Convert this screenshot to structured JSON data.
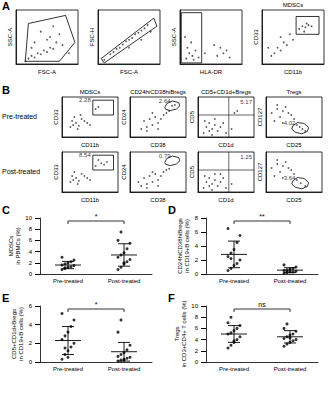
{
  "chart_data": [
    {
      "type": "scatter",
      "panel": "A",
      "xlabel": "FSC-A",
      "ylabel": "SSC-A",
      "xlim": [
        0,
        100
      ],
      "ylim": [
        0,
        100
      ],
      "tick_labels": false,
      "color": "#333333",
      "points": [
        [
          20,
          10
        ],
        [
          25,
          15
        ],
        [
          30,
          12
        ],
        [
          35,
          20
        ],
        [
          40,
          18
        ],
        [
          45,
          25
        ],
        [
          50,
          22
        ],
        [
          55,
          30
        ],
        [
          60,
          28
        ],
        [
          30,
          40
        ],
        [
          50,
          45
        ],
        [
          65,
          40
        ],
        [
          70,
          55
        ],
        [
          40,
          60
        ],
        [
          75,
          35
        ],
        [
          15,
          5
        ],
        [
          85,
          20
        ],
        [
          60,
          70
        ],
        [
          25,
          30
        ],
        [
          55,
          50
        ]
      ],
      "gate": [
        [
          15,
          5
        ],
        [
          20,
          75
        ],
        [
          80,
          90
        ],
        [
          95,
          40
        ],
        [
          70,
          5
        ]
      ]
    },
    {
      "type": "scatter",
      "xlabel": "FSC-A",
      "ylabel": "FSC-H",
      "xlim": [
        0,
        100
      ],
      "ylim": [
        0,
        100
      ],
      "tick_labels": false,
      "color": "#333333",
      "points": [
        [
          10,
          8
        ],
        [
          20,
          18
        ],
        [
          30,
          28
        ],
        [
          40,
          36
        ],
        [
          50,
          45
        ],
        [
          60,
          55
        ],
        [
          70,
          62
        ],
        [
          80,
          72
        ],
        [
          35,
          30
        ],
        [
          45,
          42
        ],
        [
          55,
          48
        ],
        [
          65,
          58
        ],
        [
          25,
          22
        ],
        [
          75,
          66
        ],
        [
          50,
          30
        ],
        [
          70,
          45
        ],
        [
          85,
          60
        ]
      ],
      "gate": [
        [
          5,
          10
        ],
        [
          10,
          2
        ],
        [
          95,
          70
        ],
        [
          90,
          85
        ]
      ]
    },
    {
      "type": "scatter",
      "xlabel": "HLA-DR",
      "ylabel": "SSC-A",
      "xlim": [
        0,
        100
      ],
      "ylim": [
        0,
        100
      ],
      "tick_labels": false,
      "color": "#333333",
      "points": [
        [
          10,
          10
        ],
        [
          15,
          20
        ],
        [
          20,
          15
        ],
        [
          12,
          30
        ],
        [
          25,
          25
        ],
        [
          18,
          40
        ],
        [
          30,
          12
        ],
        [
          60,
          15
        ],
        [
          70,
          20
        ],
        [
          65,
          30
        ],
        [
          75,
          25
        ],
        [
          8,
          50
        ],
        [
          22,
          8
        ],
        [
          55,
          35
        ],
        [
          80,
          12
        ],
        [
          40,
          20
        ]
      ],
      "gate": [
        [
          2,
          2
        ],
        [
          2,
          95
        ],
        [
          35,
          95
        ],
        [
          35,
          2
        ]
      ]
    },
    {
      "type": "scatter",
      "title": "MDSCs",
      "xlabel": "CD11b",
      "ylabel": "CD33",
      "xlim": [
        0,
        100
      ],
      "ylim": [
        0,
        100
      ],
      "tick_labels": false,
      "color": "#333333",
      "points": [
        [
          20,
          20
        ],
        [
          25,
          30
        ],
        [
          30,
          25
        ],
        [
          35,
          40
        ],
        [
          40,
          35
        ],
        [
          15,
          15
        ],
        [
          60,
          65
        ],
        [
          65,
          70
        ],
        [
          70,
          68
        ],
        [
          75,
          72
        ],
        [
          68,
          60
        ],
        [
          72,
          75
        ],
        [
          50,
          45
        ],
        [
          45,
          55
        ],
        [
          80,
          70
        ],
        [
          10,
          30
        ],
        [
          30,
          50
        ]
      ],
      "gate": [
        [
          55,
          55
        ],
        [
          55,
          88
        ],
        [
          92,
          88
        ],
        [
          92,
          55
        ]
      ]
    },
    {
      "type": "scatter",
      "panel": "B",
      "row_label": "Pre-treated",
      "title": "MDSCs",
      "xlabel": "CD11b",
      "ylabel": "CD33",
      "xlim": [
        0,
        100
      ],
      "ylim": [
        0,
        100
      ],
      "tick_labels": false,
      "color": "#333333",
      "points": [
        [
          20,
          30
        ],
        [
          25,
          35
        ],
        [
          30,
          28
        ],
        [
          35,
          45
        ],
        [
          15,
          25
        ],
        [
          40,
          40
        ],
        [
          22,
          50
        ],
        [
          28,
          20
        ],
        [
          60,
          70
        ],
        [
          65,
          75
        ],
        [
          45,
          35
        ],
        [
          18,
          40
        ],
        [
          33,
          55
        ],
        [
          50,
          30
        ]
      ],
      "gate": [
        [
          55,
          55
        ],
        [
          55,
          92
        ],
        [
          92,
          92
        ],
        [
          92,
          55
        ]
      ],
      "gate_label": 2.28
    },
    {
      "type": "scatter",
      "title": "CD24hiCD38hiBregs",
      "xlabel": "CD38",
      "ylabel": "CD24",
      "xlim": [
        0,
        100
      ],
      "ylim": [
        0,
        100
      ],
      "tick_labels": false,
      "color": "#333333",
      "points": [
        [
          20,
          20
        ],
        [
          30,
          25
        ],
        [
          40,
          30
        ],
        [
          50,
          35
        ],
        [
          25,
          40
        ],
        [
          35,
          45
        ],
        [
          45,
          50
        ],
        [
          55,
          45
        ],
        [
          60,
          55
        ],
        [
          65,
          60
        ],
        [
          70,
          65
        ],
        [
          75,
          78
        ],
        [
          30,
          15
        ],
        [
          50,
          20
        ],
        [
          40,
          60
        ],
        [
          80,
          80
        ]
      ],
      "gate": [
        [
          62,
          74
        ],
        [
          66,
          84
        ],
        [
          76,
          90
        ],
        [
          87,
          86
        ],
        [
          89,
          78
        ],
        [
          83,
          70
        ],
        [
          72,
          66
        ],
        [
          64,
          69
        ]
      ],
      "gate_label": 2.64
    },
    {
      "type": "scatter",
      "title": "CD5+CD1d+Bregs",
      "xlabel": "CD1d",
      "ylabel": "CD5",
      "xlim": [
        0,
        100
      ],
      "ylim": [
        0,
        100
      ],
      "tick_labels": false,
      "color": "#333333",
      "points": [
        [
          10,
          10
        ],
        [
          20,
          15
        ],
        [
          15,
          25
        ],
        [
          25,
          20
        ],
        [
          30,
          30
        ],
        [
          35,
          15
        ],
        [
          20,
          35
        ],
        [
          40,
          25
        ],
        [
          12,
          40
        ],
        [
          30,
          45
        ],
        [
          45,
          35
        ],
        [
          60,
          20
        ],
        [
          65,
          60
        ],
        [
          70,
          65
        ],
        [
          50,
          10
        ],
        [
          25,
          5
        ]
      ],
      "quadrant": [
        55,
        55
      ],
      "gate_label": 5.17
    },
    {
      "type": "scatter",
      "title": "Tregs",
      "xlabel": "CD25",
      "ylabel": "CD127",
      "xlim": [
        0,
        100
      ],
      "ylim": [
        0,
        100
      ],
      "tick_labels": false,
      "color": "#333333",
      "points": [
        [
          10,
          60
        ],
        [
          20,
          70
        ],
        [
          30,
          65
        ],
        [
          40,
          60
        ],
        [
          25,
          50
        ],
        [
          35,
          75
        ],
        [
          15,
          40
        ],
        [
          45,
          55
        ],
        [
          50,
          45
        ],
        [
          55,
          30
        ],
        [
          60,
          25
        ],
        [
          30,
          35
        ],
        [
          20,
          80
        ],
        [
          65,
          20
        ],
        [
          70,
          15
        ]
      ],
      "gate": [
        [
          48,
          28
        ],
        [
          56,
          36
        ],
        [
          68,
          34
        ],
        [
          76,
          24
        ],
        [
          74,
          14
        ],
        [
          64,
          8
        ],
        [
          52,
          12
        ],
        [
          46,
          20
        ]
      ],
      "gate_label": 4.02
    },
    {
      "type": "scatter",
      "row_label": "Post-treated",
      "xlabel": "CD11b",
      "ylabel": "CD33",
      "xlim": [
        0,
        100
      ],
      "ylim": [
        0,
        100
      ],
      "tick_labels": false,
      "color": "#333333",
      "points": [
        [
          20,
          30
        ],
        [
          25,
          35
        ],
        [
          30,
          28
        ],
        [
          35,
          45
        ],
        [
          15,
          25
        ],
        [
          40,
          40
        ],
        [
          22,
          50
        ],
        [
          28,
          20
        ],
        [
          60,
          65
        ],
        [
          70,
          72
        ],
        [
          75,
          68
        ],
        [
          65,
          80
        ],
        [
          80,
          75
        ],
        [
          45,
          35
        ],
        [
          18,
          40
        ],
        [
          50,
          30
        ]
      ],
      "gate": [
        [
          55,
          55
        ],
        [
          55,
          92
        ],
        [
          92,
          92
        ],
        [
          92,
          55
        ]
      ],
      "gate_label": 8.54
    },
    {
      "type": "scatter",
      "xlabel": "CD38",
      "ylabel": "CD24",
      "xlim": [
        0,
        100
      ],
      "ylim": [
        0,
        100
      ],
      "tick_labels": false,
      "color": "#333333",
      "points": [
        [
          20,
          15
        ],
        [
          30,
          20
        ],
        [
          40,
          25
        ],
        [
          50,
          30
        ],
        [
          25,
          35
        ],
        [
          35,
          40
        ],
        [
          45,
          45
        ],
        [
          55,
          40
        ],
        [
          60,
          50
        ],
        [
          65,
          55
        ],
        [
          70,
          58
        ],
        [
          30,
          10
        ],
        [
          50,
          15
        ],
        [
          40,
          50
        ],
        [
          15,
          25
        ]
      ],
      "gate": [
        [
          62,
          74
        ],
        [
          66,
          84
        ],
        [
          76,
          90
        ],
        [
          87,
          86
        ],
        [
          89,
          78
        ],
        [
          83,
          70
        ],
        [
          72,
          66
        ],
        [
          64,
          69
        ]
      ],
      "gate_label": 0.79
    },
    {
      "type": "scatter",
      "xlabel": "CD1d",
      "ylabel": "CD5",
      "xlim": [
        0,
        100
      ],
      "ylim": [
        0,
        100
      ],
      "tick_labels": false,
      "color": "#333333",
      "points": [
        [
          10,
          10
        ],
        [
          20,
          15
        ],
        [
          15,
          25
        ],
        [
          25,
          20
        ],
        [
          30,
          30
        ],
        [
          35,
          15
        ],
        [
          20,
          35
        ],
        [
          40,
          25
        ],
        [
          12,
          40
        ],
        [
          30,
          45
        ],
        [
          45,
          35
        ],
        [
          60,
          20
        ],
        [
          50,
          10
        ],
        [
          25,
          5
        ],
        [
          40,
          45
        ]
      ],
      "quadrant": [
        55,
        55
      ],
      "gate_label": 1.25
    },
    {
      "type": "scatter",
      "xlabel": "CD25",
      "ylabel": "CD127",
      "xlim": [
        0,
        100
      ],
      "ylim": [
        0,
        100
      ],
      "tick_labels": false,
      "color": "#333333",
      "points": [
        [
          10,
          60
        ],
        [
          20,
          70
        ],
        [
          30,
          65
        ],
        [
          40,
          60
        ],
        [
          25,
          50
        ],
        [
          35,
          75
        ],
        [
          15,
          40
        ],
        [
          45,
          55
        ],
        [
          50,
          45
        ],
        [
          55,
          30
        ],
        [
          62,
          22
        ],
        [
          30,
          35
        ],
        [
          20,
          80
        ],
        [
          70,
          15
        ]
      ],
      "gate": [
        [
          48,
          28
        ],
        [
          56,
          36
        ],
        [
          68,
          34
        ],
        [
          76,
          24
        ],
        [
          74,
          14
        ],
        [
          64,
          8
        ],
        [
          52,
          12
        ],
        [
          46,
          20
        ]
      ],
      "gate_label": 3.64
    },
    {
      "type": "dot",
      "panel": "C",
      "ylabel": "MDSCs\nin PBMCs (%)",
      "categories": [
        "Pre-treated",
        "Post-treated"
      ],
      "color": "#000000",
      "ylim": [
        0,
        10
      ],
      "yticks": [
        0,
        2,
        4,
        6,
        8,
        10
      ],
      "values": [
        [
          0.8,
          1.0,
          1.2,
          1.3,
          1.5,
          1.6,
          1.8,
          2.0,
          2.2,
          2.5,
          3.0,
          1.1
        ],
        [
          0.8,
          1.2,
          1.8,
          2.2,
          2.6,
          3.0,
          3.4,
          3.8,
          4.5,
          5.5,
          6.0,
          7.5,
          2.0
        ]
      ],
      "mean": [
        1.6,
        3.4
      ],
      "sd": [
        0.65,
        2.0
      ],
      "significance": "*"
    },
    {
      "type": "dot",
      "panel": "D",
      "ylabel": "CD24hiCD38hiBregs\nin CD19+B cells (%)",
      "categories": [
        "Pre-treated",
        "Post-treated"
      ],
      "color": "#000000",
      "ylim": [
        0,
        8
      ],
      "yticks": [
        0,
        2,
        4,
        6,
        8
      ],
      "values": [
        [
          0.5,
          0.8,
          1.2,
          1.5,
          2.0,
          2.5,
          3.0,
          3.5,
          4.5,
          5.5,
          6.5,
          2.2
        ],
        [
          0.1,
          0.2,
          0.3,
          0.3,
          0.4,
          0.5,
          0.6,
          0.7,
          0.8,
          1.0,
          1.3,
          0.4
        ]
      ],
      "mean": [
        2.8,
        0.55
      ],
      "sd": [
        1.9,
        0.35
      ],
      "significance": "**"
    },
    {
      "type": "dot",
      "panel": "E",
      "ylabel": "CD5+CD1d+Bregs\nin CD19+B cells (%)",
      "categories": [
        "Pre-treated",
        "Post-treated"
      ],
      "color": "#000000",
      "ylim": [
        0,
        6
      ],
      "yticks": [
        0,
        2,
        4,
        6
      ],
      "values": [
        [
          0.3,
          0.8,
          1.2,
          1.6,
          2.0,
          2.4,
          2.8,
          3.2,
          3.8,
          4.5,
          5.2,
          1.5,
          0.5
        ],
        [
          0.1,
          0.2,
          0.3,
          0.4,
          0.5,
          0.6,
          0.8,
          1.0,
          1.3,
          1.8,
          3.2,
          4.5,
          0.2
        ]
      ],
      "mean": [
        2.3,
        1.1
      ],
      "sd": [
        1.5,
        1.0
      ],
      "significance": "*"
    },
    {
      "type": "dot",
      "panel": "F",
      "ylabel": "Tregs\nin CD3+CD4+ T cells (%)",
      "categories": [
        "Pre-treated",
        "Post-treated"
      ],
      "color": "#000000",
      "ylim": [
        0,
        10
      ],
      "yticks": [
        0,
        2,
        4,
        6,
        8,
        10
      ],
      "values": [
        [
          2.5,
          3.0,
          3.5,
          4.0,
          4.5,
          5.0,
          5.2,
          5.6,
          6.0,
          6.5,
          7.0,
          8.0,
          3.8
        ],
        [
          2.8,
          3.2,
          3.5,
          3.8,
          4.0,
          4.2,
          4.5,
          4.8,
          5.0,
          5.5,
          6.0,
          6.8,
          4.3
        ]
      ],
      "mean": [
        5.0,
        4.5
      ],
      "sd": [
        1.5,
        1.1
      ],
      "significance": "ns"
    }
  ]
}
